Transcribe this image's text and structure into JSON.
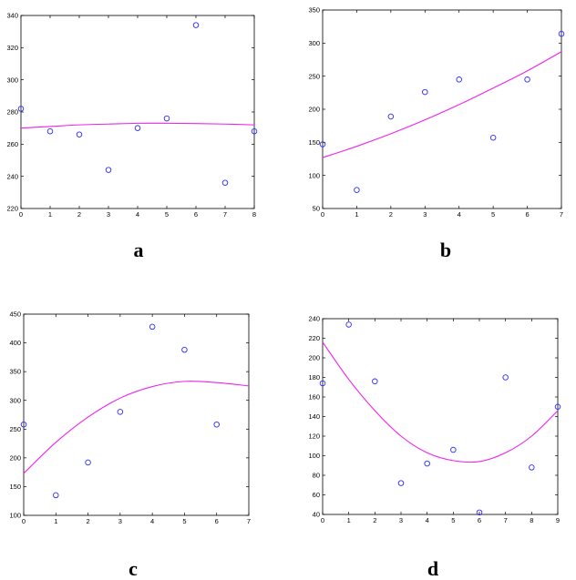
{
  "colors": {
    "marker": "#2b2bff",
    "fit": "#ee22ee",
    "axes": "#000000"
  },
  "chart_data": [
    {
      "id": "a",
      "type": "scatter",
      "label": "a",
      "fit": "quadratic",
      "x": [
        0,
        1,
        2,
        3,
        4,
        5,
        6,
        7,
        8
      ],
      "y": [
        282,
        268,
        266,
        244,
        270,
        276,
        334,
        236,
        268
      ],
      "fit_y": [
        270,
        271,
        272,
        272.5,
        273,
        273,
        272.8,
        272.5,
        272
      ],
      "xlim": [
        0,
        8
      ],
      "ylim": [
        220,
        340
      ],
      "xticks": [
        "0",
        "1",
        "2",
        "3",
        "4",
        "5",
        "6",
        "7",
        "8"
      ],
      "yticks": [
        "220",
        "240",
        "260",
        "280",
        "300",
        "320",
        "340"
      ]
    },
    {
      "id": "b",
      "type": "scatter",
      "label": "b",
      "fit": "quadratic",
      "x": [
        0,
        1,
        2,
        3,
        4,
        5,
        6,
        7
      ],
      "y": [
        147,
        78,
        189,
        226,
        245,
        157,
        245,
        314
      ],
      "fit_y": [
        127,
        144,
        163,
        184,
        207,
        232,
        258,
        287
      ],
      "xlim": [
        0,
        7
      ],
      "ylim": [
        50,
        350
      ],
      "xticks": [
        "0",
        "1",
        "2",
        "3",
        "4",
        "5",
        "6",
        "7"
      ],
      "yticks": [
        "50",
        "100",
        "150",
        "200",
        "250",
        "300",
        "350"
      ]
    },
    {
      "id": "c",
      "type": "scatter",
      "label": "c",
      "fit": "quadratic",
      "x": [
        0,
        1,
        2,
        3,
        4,
        5,
        6
      ],
      "y": [
        258,
        135,
        192,
        280,
        428,
        388,
        258
      ],
      "fit_y": [
        173,
        227,
        271,
        304,
        324,
        333,
        331,
        325
      ],
      "fit_x": [
        0,
        1,
        2,
        3,
        4,
        5,
        6,
        7
      ],
      "xlim": [
        0,
        7
      ],
      "ylim": [
        100,
        450
      ],
      "xticks": [
        "0",
        "1",
        "2",
        "3",
        "4",
        "5",
        "6",
        "7"
      ],
      "yticks": [
        "100",
        "150",
        "200",
        "250",
        "300",
        "350",
        "400",
        "450"
      ]
    },
    {
      "id": "d",
      "type": "scatter",
      "label": "d",
      "fit": "quadratic",
      "x": [
        0,
        1,
        2,
        3,
        4,
        5,
        6,
        7,
        8,
        9
      ],
      "y": [
        174,
        234,
        176,
        72,
        92,
        106,
        42,
        180,
        88,
        150
      ],
      "fit_y": [
        216,
        178,
        146,
        120,
        103,
        95,
        94,
        103,
        120,
        146
      ],
      "xlim": [
        0,
        9
      ],
      "ylim": [
        40,
        240
      ],
      "xticks": [
        "0",
        "1",
        "2",
        "3",
        "4",
        "5",
        "6",
        "7",
        "8",
        "9"
      ],
      "yticks": [
        "40",
        "60",
        "80",
        "100",
        "120",
        "140",
        "160",
        "180",
        "200",
        "220",
        "240"
      ]
    }
  ]
}
